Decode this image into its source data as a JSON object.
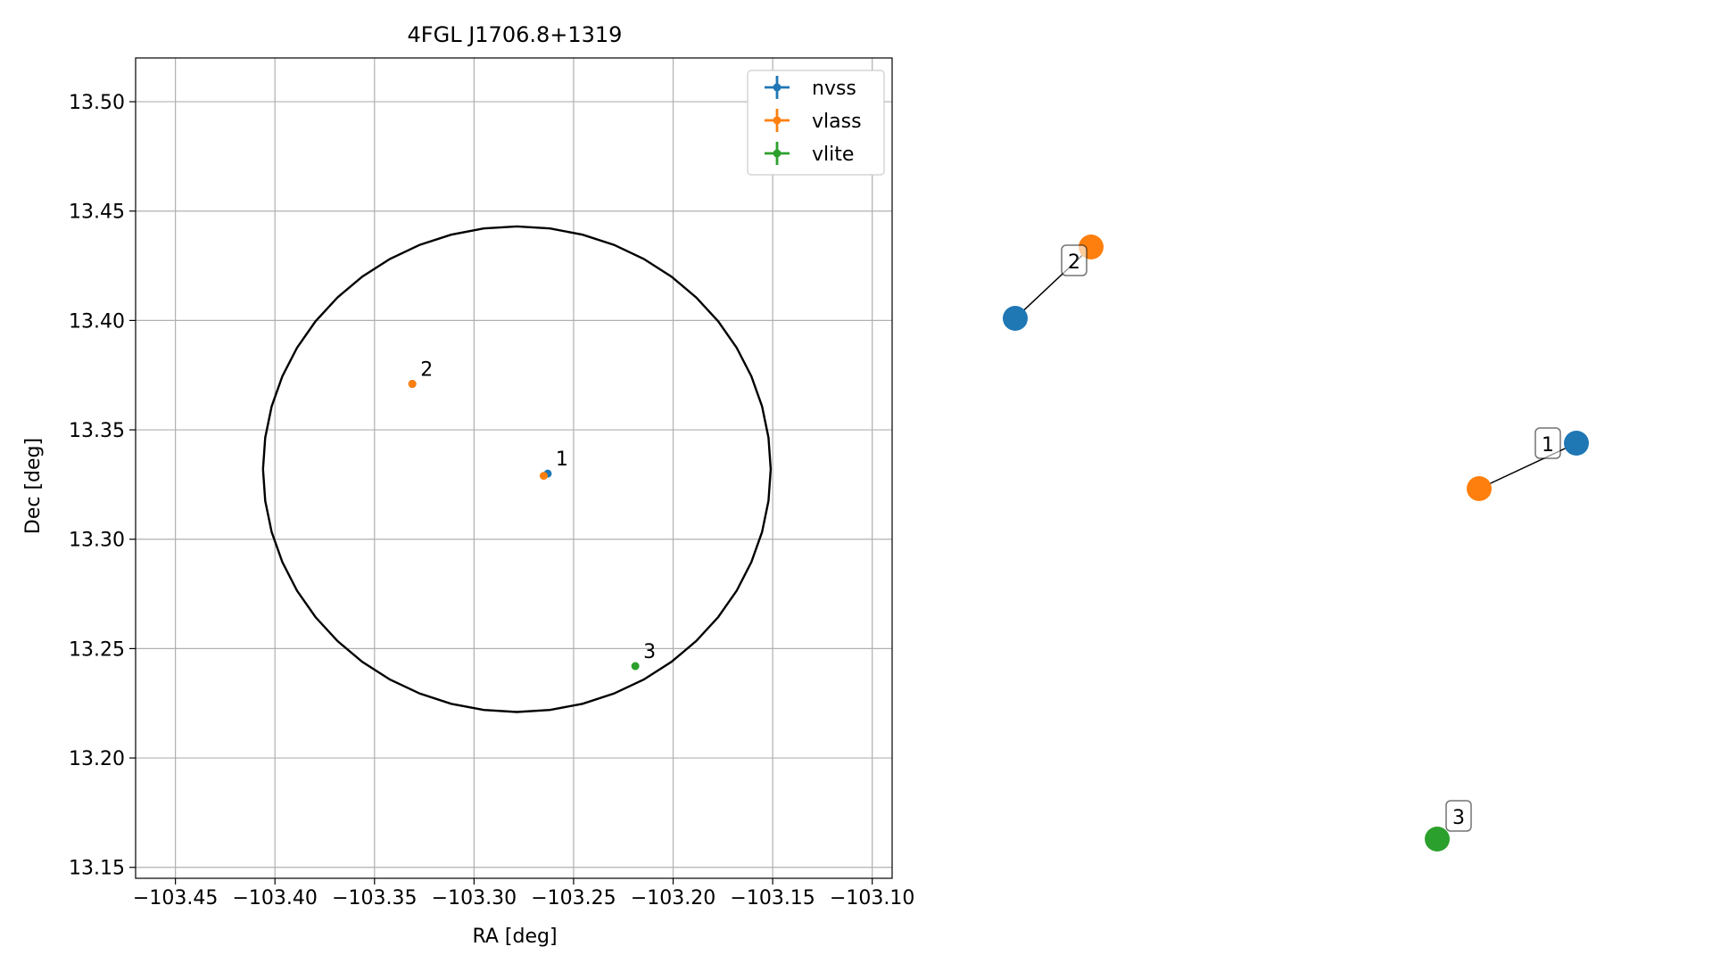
{
  "chart_data": [
    {
      "type": "scatter",
      "title": "4FGL J1706.8+1319",
      "xlabel": "RA [deg]",
      "ylabel": "Dec [deg]",
      "xlim": [
        -103.47,
        -103.09
      ],
      "ylim": [
        13.145,
        13.52
      ],
      "grid": true,
      "legend_position": "upper right",
      "x_ticks": [
        -103.45,
        -103.4,
        -103.35,
        -103.3,
        -103.25,
        -103.2,
        -103.15,
        -103.1
      ],
      "x_tick_labels": [
        "−103.45",
        "−103.40",
        "−103.35",
        "−103.30",
        "−103.25",
        "−103.20",
        "−103.15",
        "−103.10"
      ],
      "y_ticks": [
        13.15,
        13.2,
        13.25,
        13.3,
        13.35,
        13.4,
        13.45,
        13.5
      ],
      "y_tick_labels": [
        "13.15",
        "13.20",
        "13.25",
        "13.30",
        "13.35",
        "13.40",
        "13.45",
        "13.50"
      ],
      "ellipse": {
        "center": [
          -103.2785,
          13.332
        ],
        "ra_radius": 0.1275,
        "dec_radius": 0.111,
        "color": "#000000"
      },
      "series": [
        {
          "name": "nvss",
          "color": "#1f77b4",
          "points": [
            {
              "x": -103.263,
              "y": 13.33
            },
            {
              "x": -103.331,
              "y": 13.371
            }
          ]
        },
        {
          "name": "vlass",
          "color": "#ff7f0e",
          "points": [
            {
              "x": -103.265,
              "y": 13.329
            },
            {
              "x": -103.331,
              "y": 13.371
            }
          ]
        },
        {
          "name": "vlite",
          "color": "#2ca02c",
          "points": [
            {
              "x": -103.219,
              "y": 13.242
            }
          ]
        }
      ],
      "annotations": [
        {
          "text": "1",
          "x": -103.263,
          "y": 13.33
        },
        {
          "text": "2",
          "x": -103.331,
          "y": 13.371
        },
        {
          "text": "3",
          "x": -103.219,
          "y": 13.242
        }
      ]
    },
    {
      "type": "network",
      "nodes": [
        {
          "id": "n2",
          "color": "#1f77b4"
        },
        {
          "id": "v2",
          "color": "#ff7f0e"
        },
        {
          "id": "n1",
          "color": "#1f77b4"
        },
        {
          "id": "v1",
          "color": "#ff7f0e"
        },
        {
          "id": "l3",
          "color": "#2ca02c"
        }
      ],
      "edges": [
        {
          "from": "n2",
          "to": "v2",
          "label": "2"
        },
        {
          "from": "v1",
          "to": "n1",
          "label": "1"
        }
      ],
      "node_labels": [
        {
          "node": "l3",
          "label": "3"
        }
      ]
    }
  ]
}
